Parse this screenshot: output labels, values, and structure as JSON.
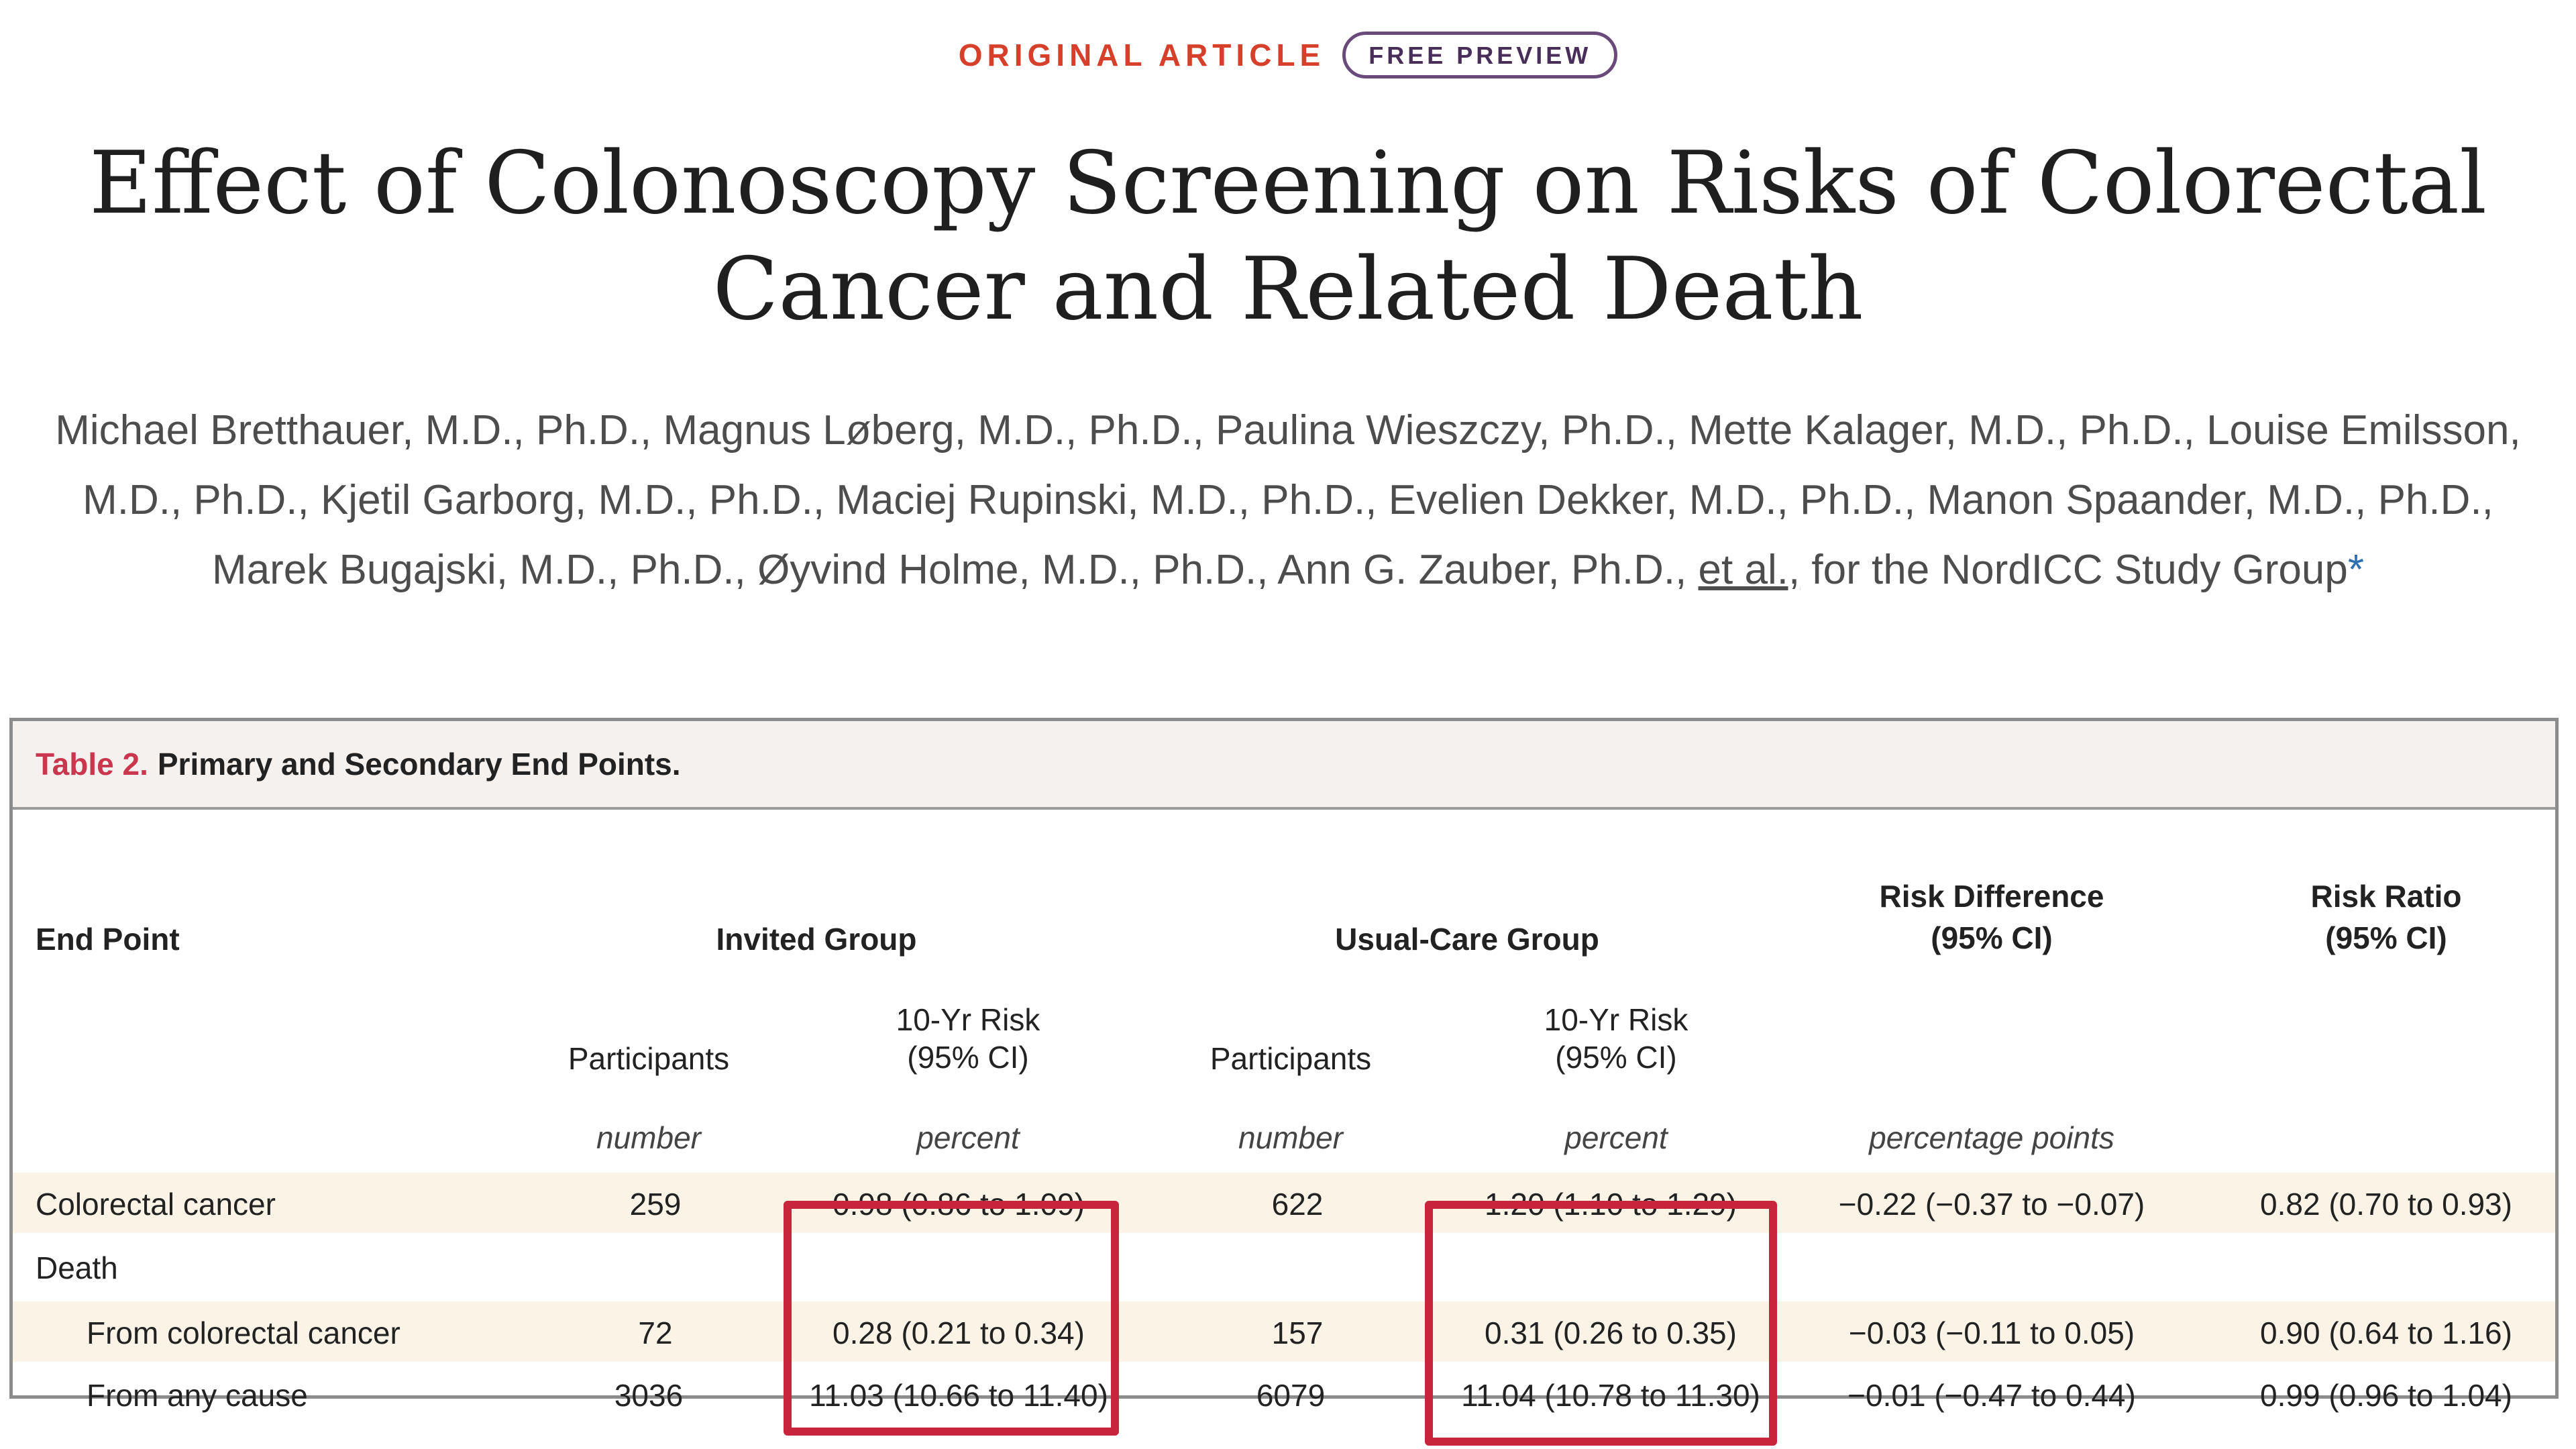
{
  "header": {
    "article_type": "ORIGINAL ARTICLE",
    "preview_badge": "FREE PREVIEW"
  },
  "title": "Effect of Colonoscopy Screening on Risks of Colorectal Cancer and Related Death",
  "authors": {
    "list": "Michael Bretthauer, M.D., Ph.D., Magnus Løberg, M.D., Ph.D., Paulina Wieszczy, Ph.D., Mette Kalager, M.D., Ph.D., Louise Emilsson, M.D., Ph.D., Kjetil Garborg, M.D., Ph.D., Maciej Rupinski, M.D., Ph.D., Evelien Dekker, M.D., Ph.D., Manon Spaander, M.D., Ph.D., Marek Bugajski, M.D., Ph.D., Øyvind Holme, M.D., Ph.D., Ann G. Zauber, Ph.D.,",
    "et_al": "et al.,",
    "group": "for the NordICC Study Group",
    "footnote_mark": "*"
  },
  "table": {
    "caption_label": "Table 2.",
    "caption_text": "Primary and Secondary End Points.",
    "headers": {
      "end_point": "End Point",
      "invited_group": "Invited Group",
      "usual_care_group": "Usual-Care Group",
      "risk_difference": "Risk Difference",
      "risk_difference_ci": "(95% CI)",
      "risk_ratio": "Risk Ratio",
      "risk_ratio_ci": "(95% CI)",
      "participants": "Participants",
      "ten_yr_risk": "10-Yr Risk",
      "ten_yr_risk_ci": "(95% CI)"
    },
    "units": {
      "number": "number",
      "percent": "percent",
      "percentage_points": "percentage points"
    },
    "rows": [
      {
        "end_point": "Colorectal cancer",
        "inv_participants": "259",
        "inv_risk": "0.98 (0.86 to 1.09)",
        "uc_participants": "622",
        "uc_risk": "1.20 (1.10 to 1.29)",
        "risk_difference": "−0.22 (−0.37 to −0.07)",
        "risk_ratio": "0.82 (0.70 to 0.93)"
      },
      {
        "end_point": "Death",
        "inv_participants": "",
        "inv_risk": "",
        "uc_participants": "",
        "uc_risk": "",
        "risk_difference": "",
        "risk_ratio": ""
      },
      {
        "end_point": "From colorectal cancer",
        "inv_participants": "72",
        "inv_risk": "0.28 (0.21 to 0.34)",
        "uc_participants": "157",
        "uc_risk": "0.31 (0.26 to 0.35)",
        "risk_difference": "−0.03 (−0.11 to 0.05)",
        "risk_ratio": "0.90 (0.64 to 1.16)"
      },
      {
        "end_point": "From any cause",
        "inv_participants": "3036",
        "inv_risk": "11.03 (10.66 to 11.40)",
        "uc_participants": "6079",
        "uc_risk": "11.04 (10.78 to 11.30)",
        "risk_difference": "−0.01 (−0.47 to 0.44)",
        "risk_ratio": "0.99 (0.96 to 1.04)"
      }
    ]
  },
  "highlight_color": "#c8243c"
}
